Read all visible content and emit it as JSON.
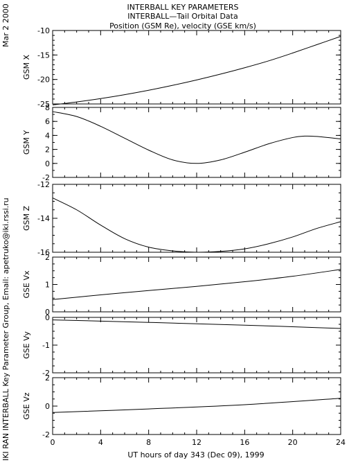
{
  "header": {
    "title_line1": "INTERBALL KEY PARAMETERS",
    "title_line2": "INTERBALL—Tail Orbital Data",
    "title_line3": "Position (GSM Re), velocity (GSE km/s)",
    "date_stamp": "Mar  2 2000",
    "credit": "IKI RAN INTERBALL Key Parameter Group, Email: apetruko@iki.rssi.ru"
  },
  "chart_data": [
    {
      "type": "line",
      "ylabel": "GSM X",
      "ylim": [
        -25,
        -10
      ],
      "yticks": [
        -10,
        -15,
        -20,
        -25
      ],
      "minor_step": 1,
      "x": [
        0,
        2,
        4,
        6,
        8,
        10,
        12,
        14,
        16,
        18,
        20,
        22,
        24
      ],
      "series": [
        {
          "values": [
            -25.2,
            -24.6,
            -23.9,
            -23.1,
            -22.2,
            -21.2,
            -20.1,
            -18.9,
            -17.6,
            -16.2,
            -14.6,
            -12.9,
            -11.2
          ]
        }
      ]
    },
    {
      "type": "line",
      "ylabel": "GSM Y",
      "ylim": [
        -2,
        8
      ],
      "yticks": [
        8,
        6,
        4,
        2,
        0,
        -2
      ],
      "minor_step": 1,
      "x": [
        0,
        2,
        4,
        6,
        8,
        10,
        12,
        14,
        16,
        18,
        20,
        21,
        22,
        24
      ],
      "series": [
        {
          "values": [
            7.4,
            6.7,
            5.3,
            3.6,
            1.9,
            0.5,
            0.0,
            0.5,
            1.6,
            2.8,
            3.7,
            3.9,
            3.85,
            3.5
          ]
        }
      ]
    },
    {
      "type": "line",
      "ylabel": "GSM Z",
      "ylim": [
        -16,
        -12
      ],
      "yticks": [
        -12,
        -14,
        -16
      ],
      "minor_step": 0.5,
      "x": [
        0,
        2,
        4,
        6,
        8,
        10,
        12,
        14,
        16,
        18,
        20,
        22,
        24
      ],
      "series": [
        {
          "values": [
            -12.8,
            -13.5,
            -14.4,
            -15.2,
            -15.7,
            -15.92,
            -16.0,
            -15.95,
            -15.8,
            -15.5,
            -15.1,
            -14.6,
            -14.2
          ]
        }
      ]
    },
    {
      "type": "line",
      "ylabel": "GSE Vx",
      "ylim": [
        0,
        2
      ],
      "yticks": [
        2,
        1,
        0
      ],
      "minor_step": 0.25,
      "x": [
        0,
        4,
        8,
        12,
        16,
        20,
        24
      ],
      "series": [
        {
          "values": [
            0.45,
            0.62,
            0.78,
            0.93,
            1.1,
            1.3,
            1.55
          ]
        }
      ]
    },
    {
      "type": "line",
      "ylabel": "GSE Vy",
      "ylim": [
        -2,
        0
      ],
      "yticks": [
        0,
        -1,
        -2
      ],
      "minor_step": 0.25,
      "x": [
        0,
        8,
        16,
        24
      ],
      "series": [
        {
          "values": [
            -0.09,
            -0.18,
            -0.28,
            -0.4
          ]
        }
      ]
    },
    {
      "type": "line",
      "ylabel": "GSE Vz",
      "ylim": [
        -2,
        2
      ],
      "yticks": [
        2,
        0,
        -2
      ],
      "minor_step": 0.5,
      "x": [
        0,
        8,
        16,
        24
      ],
      "series": [
        {
          "values": [
            -0.45,
            -0.2,
            0.1,
            0.55
          ]
        }
      ]
    }
  ],
  "x_axis": {
    "xlim": [
      0,
      24
    ],
    "ticks": [
      0,
      4,
      8,
      12,
      16,
      20,
      24
    ],
    "minor_step": 1,
    "label": "UT hours of day 343 (Dec 09), 1999"
  }
}
